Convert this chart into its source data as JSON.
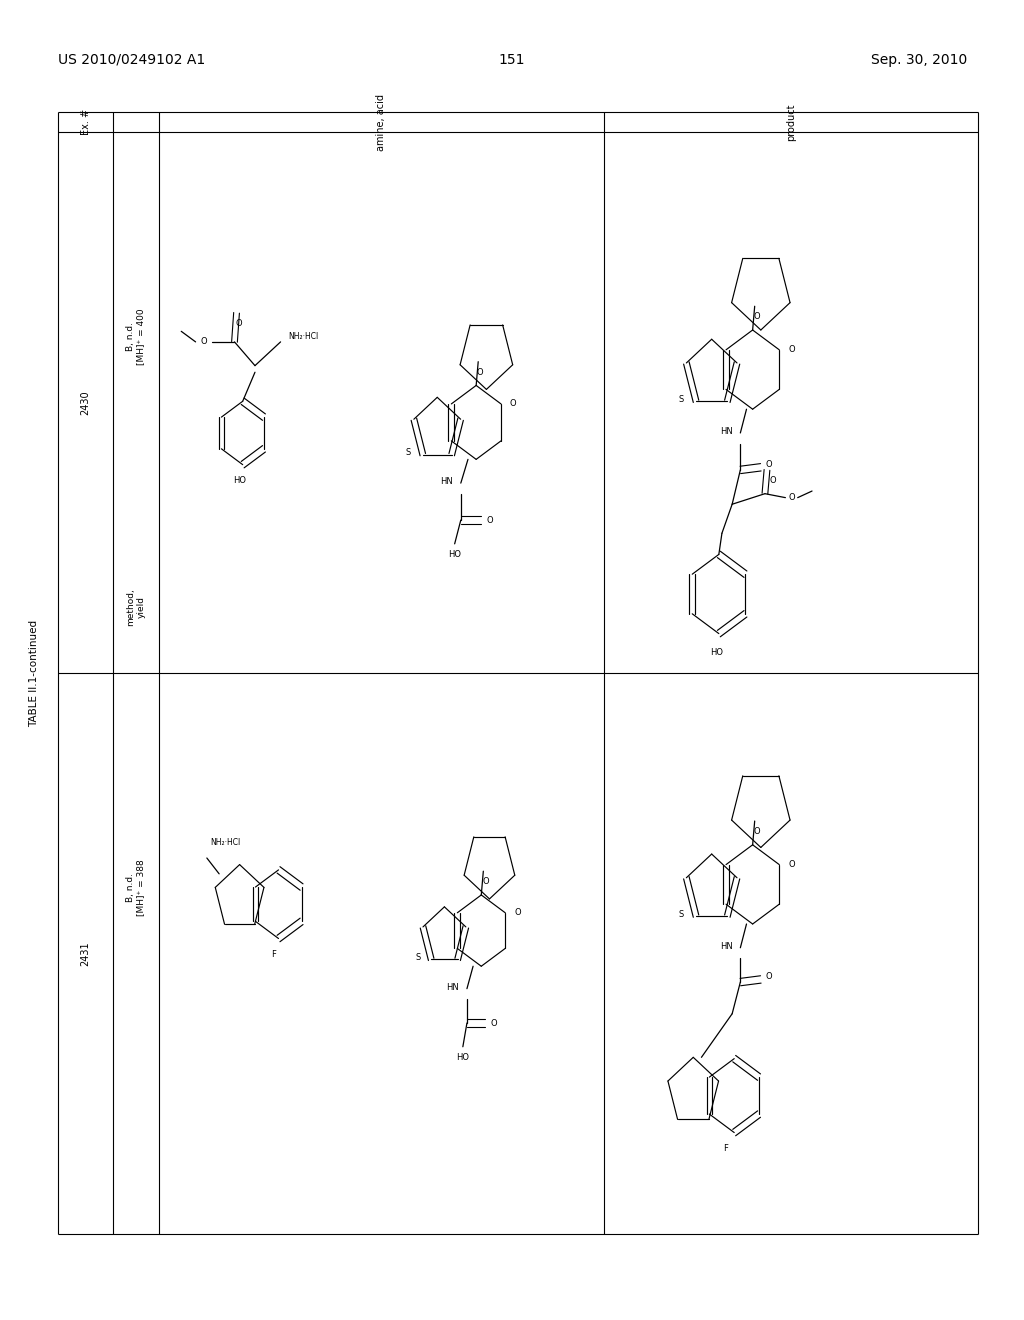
{
  "background_color": "#ffffff",
  "header_left": "US 2010/0249102 A1",
  "header_center": "151",
  "header_right": "Sep. 30, 2010",
  "table_title": "TABLE II.1-continued",
  "col_ex": "Ex. #",
  "col_amine": "amine, acid",
  "col_product": "product",
  "col_method": "method,\nyield",
  "ex1": "2430",
  "ex2": "2431",
  "method1_line1": "B, n.d.",
  "method1_line2": "[MH]+ = 400",
  "method2_line1": "B, n.d.",
  "method2_line2": "[MH]+ = 388",
  "TL": 0.057,
  "TR": 0.955,
  "TT": 0.915,
  "TB": 0.065,
  "V1": 0.11,
  "V2": 0.155,
  "V3": 0.59,
  "CH": 0.9,
  "RD": 0.49
}
